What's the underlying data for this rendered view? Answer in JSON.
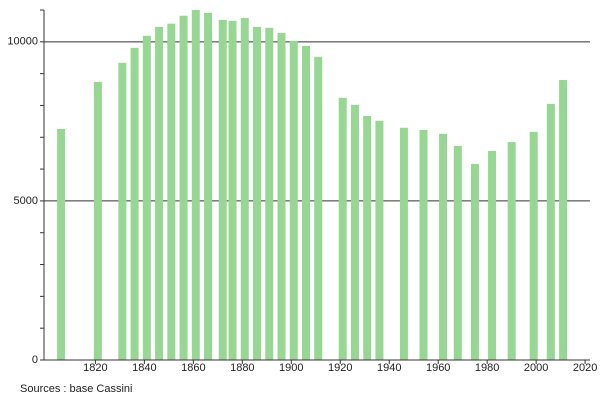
{
  "chart_data": {
    "type": "bar",
    "x": [
      1806,
      1821,
      1831,
      1836,
      1841,
      1846,
      1851,
      1856,
      1861,
      1866,
      1872,
      1876,
      1881,
      1886,
      1891,
      1896,
      1901,
      1906,
      1911,
      1921,
      1926,
      1931,
      1936,
      1946,
      1954,
      1962,
      1968,
      1975,
      1982,
      1990,
      1999,
      2006,
      2011
    ],
    "values": [
      7260,
      8740,
      9340,
      9810,
      10190,
      10470,
      10570,
      10820,
      11000,
      10910,
      10690,
      10660,
      10750,
      10470,
      10440,
      10280,
      10030,
      9870,
      9530,
      8240,
      8020,
      7670,
      7520,
      7300,
      7230,
      7110,
      6730,
      6160,
      6570,
      6850,
      7170,
      8050,
      8800
    ],
    "color": "#98d694",
    "xlim": [
      1799,
      2022
    ],
    "xticks": [
      1820,
      1840,
      1860,
      1880,
      1900,
      1920,
      1940,
      1960,
      1980,
      2000,
      2020
    ],
    "ylim": [
      0,
      11000
    ],
    "yticks": [
      0,
      5000,
      10000
    ],
    "grid": true,
    "source": "Sources : base Cassini"
  }
}
